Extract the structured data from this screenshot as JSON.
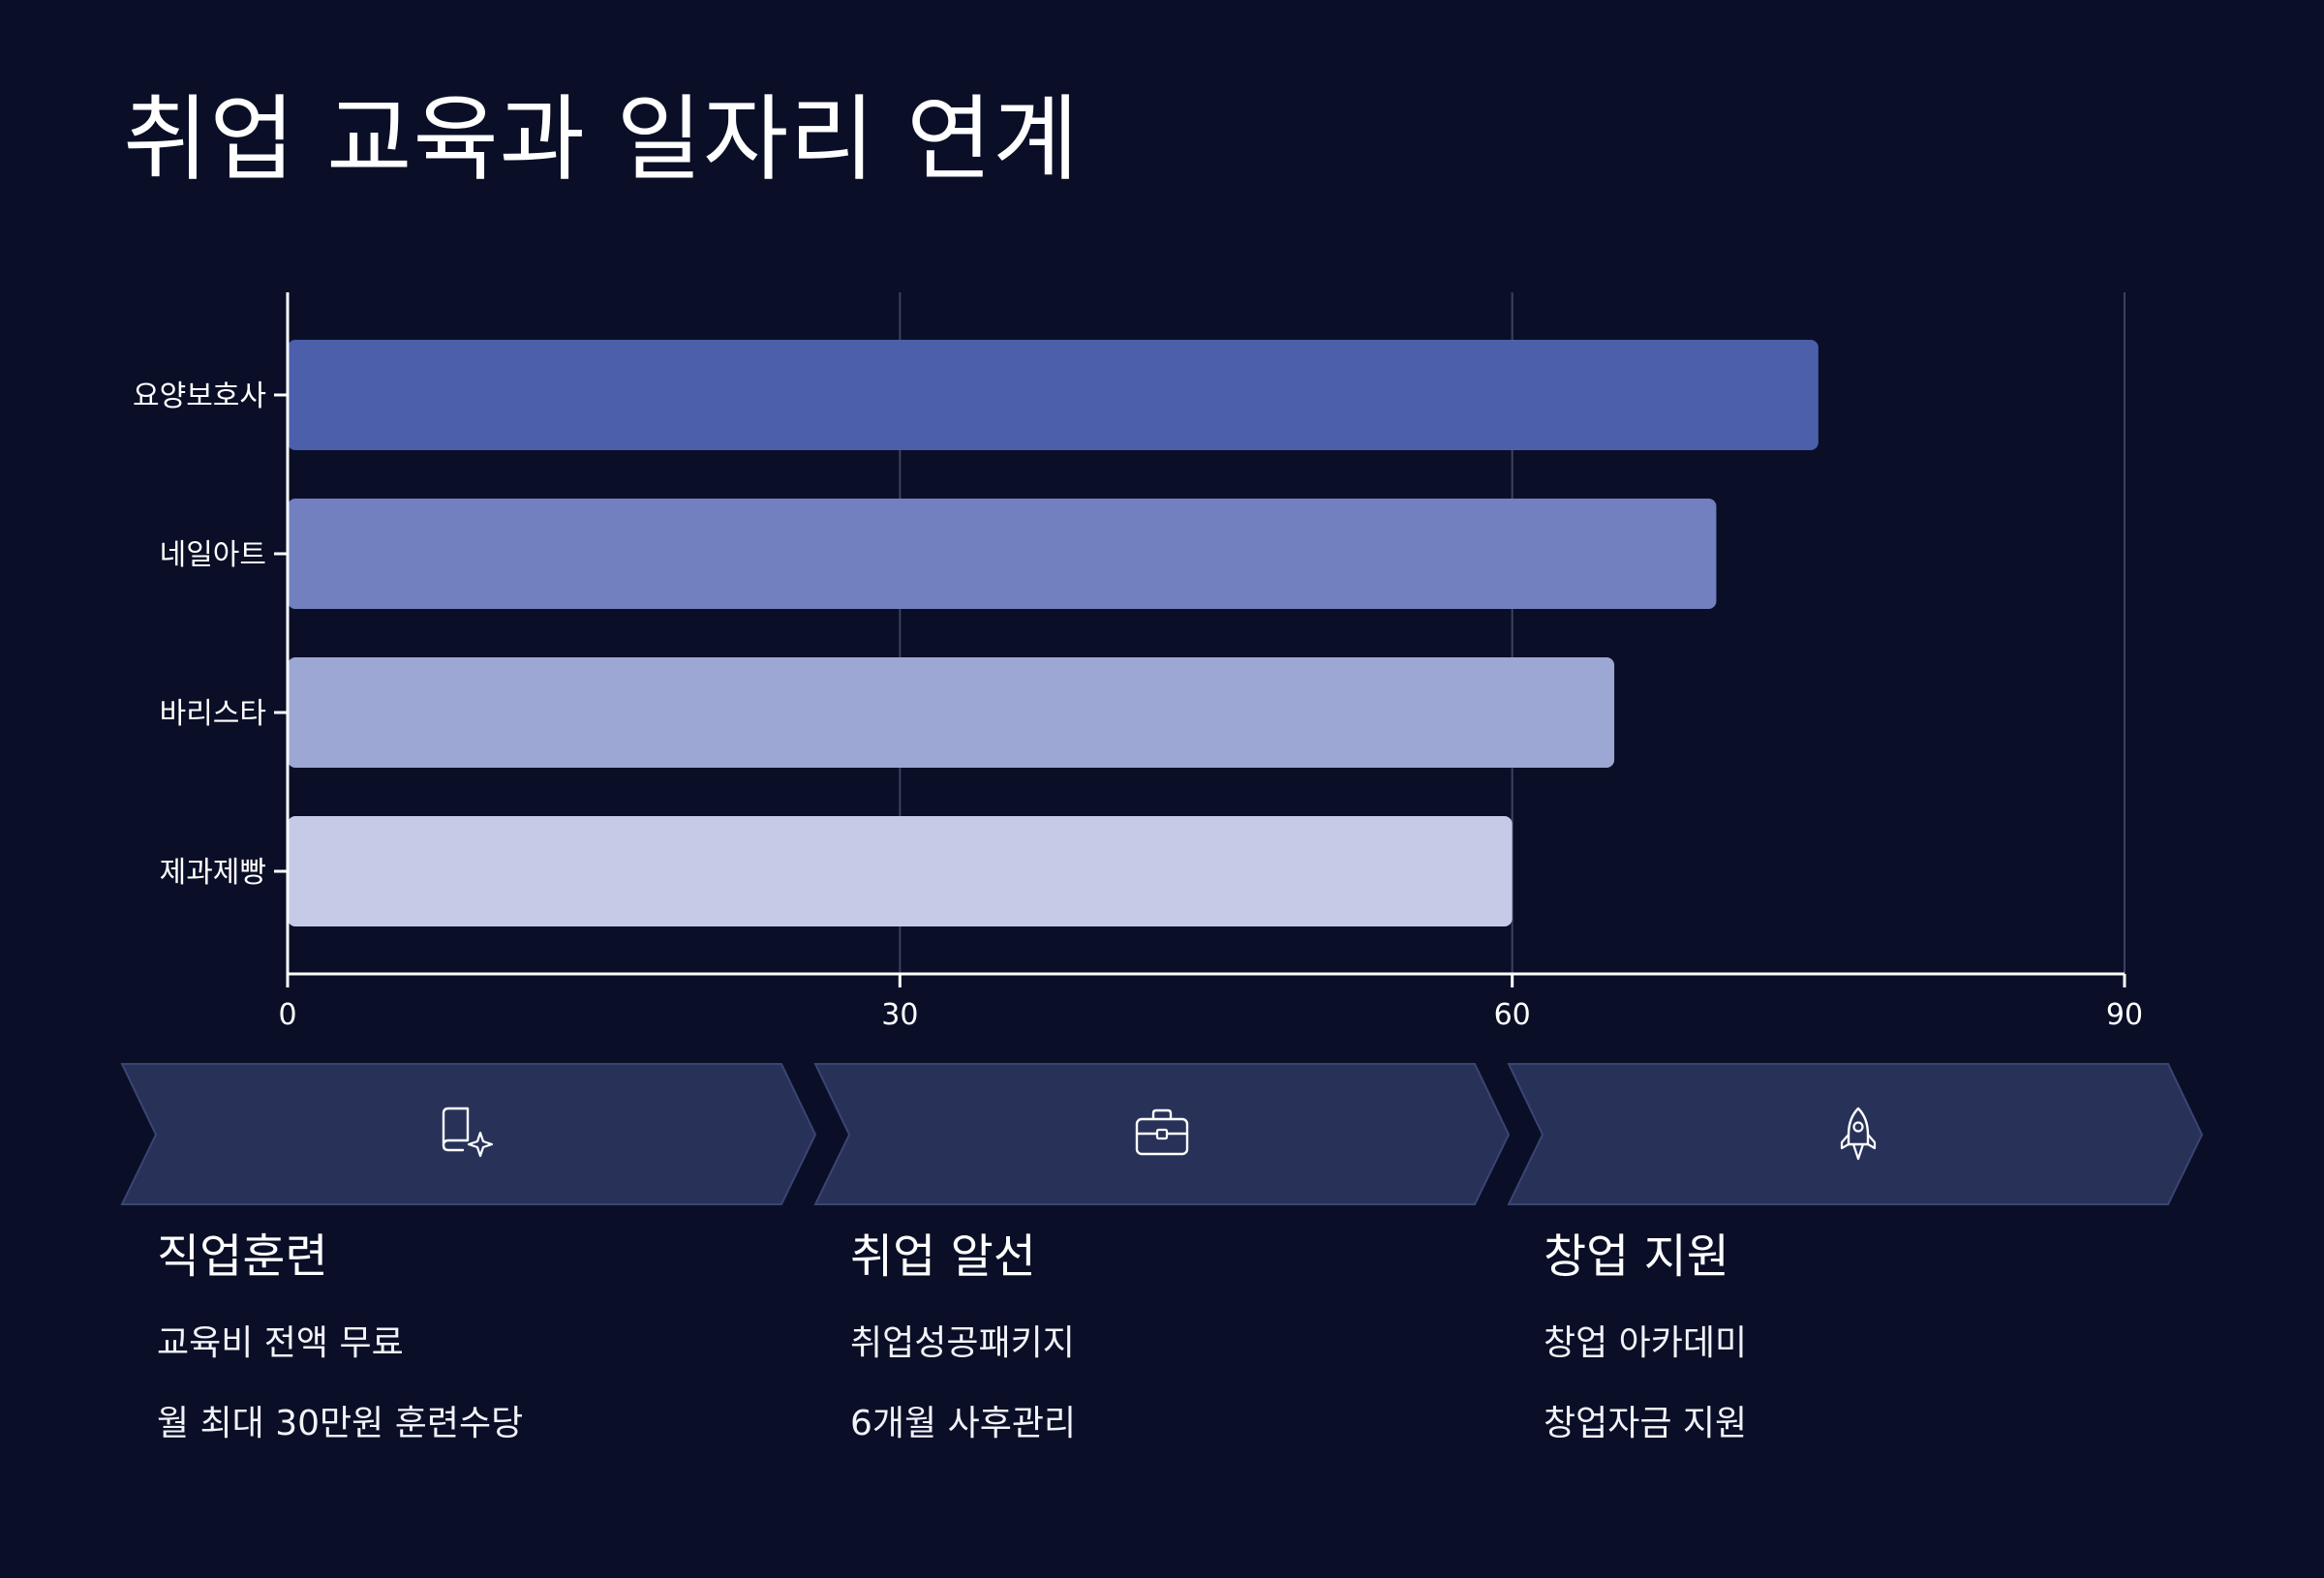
{
  "title": "취업 교육과 일자리 연계",
  "chart_data": {
    "type": "bar",
    "orientation": "horizontal",
    "categories": [
      "요양보호사",
      "네일아트",
      "바리스타",
      "제과제빵"
    ],
    "values": [
      75,
      70,
      65,
      60
    ],
    "colors": [
      "#4c5fab",
      "#7280bf",
      "#9da7d3",
      "#c5cae6"
    ],
    "xlim": [
      0,
      90
    ],
    "xticks": [
      0,
      30,
      60,
      90
    ],
    "grid": true
  },
  "steps": [
    {
      "icon": "book-sparkle-icon",
      "heading": "직업훈련",
      "items": [
        "교육비 전액 무료",
        "월 최대 30만원 훈련수당"
      ]
    },
    {
      "icon": "briefcase-icon",
      "heading": "취업 알선",
      "items": [
        "취업성공패키지",
        "6개월 사후관리"
      ]
    },
    {
      "icon": "rocket-icon",
      "heading": "창업 지원",
      "items": [
        "창업 아카데미",
        "창업자금 지원"
      ]
    }
  ]
}
